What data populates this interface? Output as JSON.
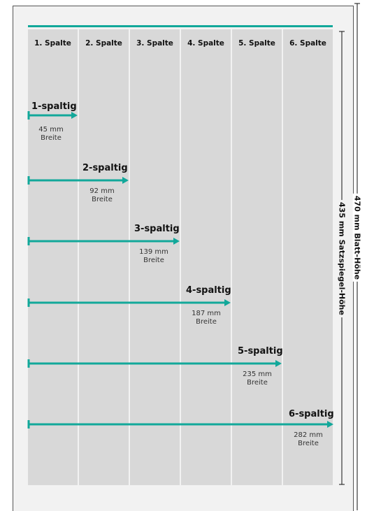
{
  "columns": [
    "1. Spalte",
    "2. Spalte",
    "3. Spalte",
    "4. Spalte",
    "5. Spalte",
    "6. Spalte"
  ],
  "spans": [
    {
      "title": "1-spaltig",
      "width_value": "45 mm",
      "width_label": "Breite"
    },
    {
      "title": "2-spaltig",
      "width_value": "92 mm",
      "width_label": "Breite"
    },
    {
      "title": "3-spaltig",
      "width_value": "139 mm",
      "width_label": "Breite"
    },
    {
      "title": "4-spaltig",
      "width_value": "187 mm",
      "width_label": "Breite"
    },
    {
      "title": "5-spaltig",
      "width_value": "235 mm",
      "width_label": "Breite"
    },
    {
      "title": "6-spaltig",
      "width_value": "282 mm",
      "width_label": "Breite"
    }
  ],
  "dimensions": {
    "type_area_height": "435 mm Satzspiegel-Höhe",
    "sheet_height": "470 mm Blatt-Höhe"
  },
  "colors": {
    "accent": "#12a89a",
    "column": "#d8d8d8",
    "page": "#f2f2f2"
  }
}
